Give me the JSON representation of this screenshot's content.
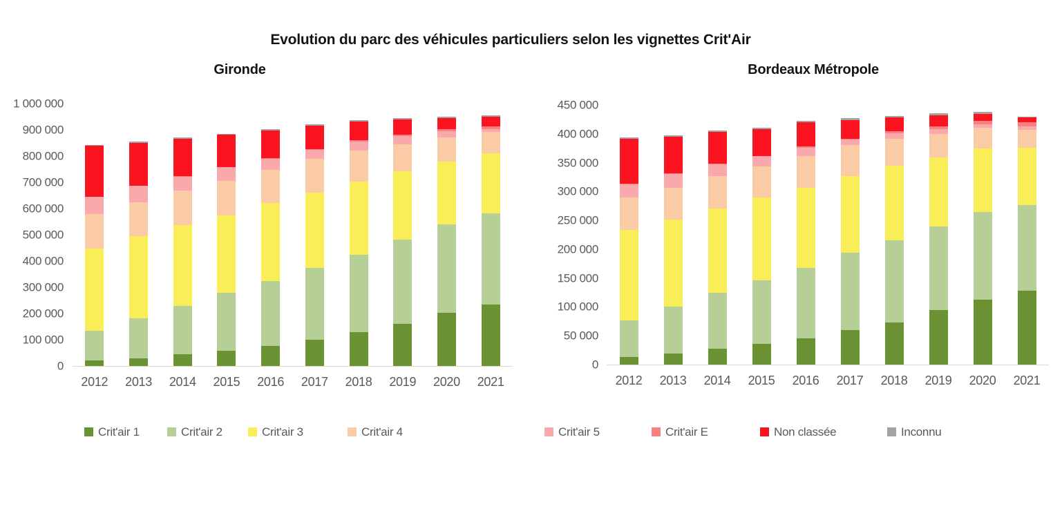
{
  "title": "Evolution du parc des véhicules particuliers selon les vignettes Crit'Air",
  "colors": {
    "axis_line": "#d9d9d9",
    "tick_text": "#595959",
    "title_text": "#141414"
  },
  "chart_data": [
    {
      "type": "bar",
      "stacked": true,
      "title": "Gironde",
      "xlabel": "",
      "ylabel": "",
      "grid": false,
      "legend_position": "bottom",
      "categories": [
        "2012",
        "2013",
        "2014",
        "2015",
        "2016",
        "2017",
        "2018",
        "2019",
        "2020",
        "2021"
      ],
      "ylim": [
        0,
        1000000
      ],
      "ytick_step": 100000,
      "ytick_labels": [
        "0",
        "100 000",
        "200 000",
        "300 000",
        "400 000",
        "500 000",
        "600 000",
        "700 000",
        "800 000",
        "900 000",
        "1 000 000"
      ],
      "series": [
        {
          "name": "Crit'air 1",
          "color": "#6a9132",
          "values": [
            20000,
            30000,
            46000,
            57000,
            76000,
            101000,
            128000,
            160000,
            202000,
            235000
          ]
        },
        {
          "name": "Crit'air 2",
          "color": "#b6cf97",
          "values": [
            113000,
            152000,
            184000,
            221000,
            247000,
            274000,
            296000,
            321000,
            338000,
            347000
          ]
        },
        {
          "name": "Crit'air 3",
          "color": "#f9ee57",
          "values": [
            314000,
            312000,
            308000,
            297000,
            298000,
            285000,
            278000,
            261000,
            240000,
            228000
          ]
        },
        {
          "name": "Crit'air 4",
          "color": "#fbcba5",
          "values": [
            133000,
            131000,
            131000,
            131000,
            127000,
            129000,
            119000,
            103000,
            91000,
            81000
          ]
        },
        {
          "name": "Crit'air 5",
          "color": "#f9a8ab",
          "values": [
            65000,
            61000,
            53000,
            51000,
            41000,
            35000,
            35000,
            32000,
            24000,
            13000
          ]
        },
        {
          "name": "Crit'air E",
          "color": "#f97f80",
          "values": [
            1000,
            1000,
            1000,
            2000,
            2000,
            3000,
            4000,
            6000,
            7000,
            8000
          ]
        },
        {
          "name": "Non classée",
          "color": "#fb1420",
          "values": [
            193000,
            164000,
            143000,
            122000,
            107000,
            90000,
            72000,
            56000,
            43000,
            39000
          ]
        },
        {
          "name": "Inconnu",
          "color": "#a3a3a3",
          "values": [
            4000,
            4000,
            4000,
            4000,
            4000,
            5000,
            5000,
            5000,
            5000,
            5000
          ]
        }
      ]
    },
    {
      "type": "bar",
      "stacked": true,
      "title": "Bordeaux Métropole",
      "xlabel": "",
      "ylabel": "",
      "grid": false,
      "legend_position": "bottom",
      "categories": [
        "2012",
        "2013",
        "2014",
        "2015",
        "2016",
        "2017",
        "2018",
        "2019",
        "2020",
        "2021"
      ],
      "ylim": [
        0,
        450000
      ],
      "ytick_step": 50000,
      "ytick_labels": [
        "0",
        "50 000",
        "100 000",
        "150 000",
        "200 000",
        "250 000",
        "300 000",
        "350 000",
        "400 000",
        "450 000"
      ],
      "series": [
        {
          "name": "Crit'air 1",
          "color": "#6a9132",
          "values": [
            13000,
            19000,
            27000,
            36000,
            46000,
            60000,
            73000,
            94000,
            113000,
            128000
          ]
        },
        {
          "name": "Crit'air 2",
          "color": "#b6cf97",
          "values": [
            64000,
            82000,
            98000,
            110000,
            122000,
            134000,
            143000,
            145000,
            152000,
            149000
          ]
        },
        {
          "name": "Crit'air 3",
          "color": "#f9ee57",
          "values": [
            156000,
            150000,
            145000,
            144000,
            139000,
            133000,
            129000,
            120000,
            110000,
            99000
          ]
        },
        {
          "name": "Crit'air 4",
          "color": "#fbcba5",
          "values": [
            57000,
            56000,
            57000,
            54000,
            55000,
            54000,
            46000,
            41000,
            36000,
            31000
          ]
        },
        {
          "name": "Crit'air 5",
          "color": "#f9a8ab",
          "values": [
            23000,
            23000,
            20000,
            17000,
            14000,
            9000,
            10000,
            8000,
            6000,
            6000
          ]
        },
        {
          "name": "Crit'air E",
          "color": "#f97f80",
          "values": [
            1000,
            1000,
            1000,
            1000,
            2000,
            2000,
            4000,
            5000,
            5000,
            7000
          ]
        },
        {
          "name": "Non classée",
          "color": "#fb1420",
          "values": [
            78000,
            64000,
            55000,
            46000,
            42000,
            32000,
            23000,
            19000,
            13000,
            8000
          ]
        },
        {
          "name": "Inconnu",
          "color": "#a3a3a3",
          "values": [
            2000,
            3000,
            3000,
            3000,
            3000,
            3000,
            3000,
            4000,
            3000,
            2000
          ]
        }
      ]
    }
  ]
}
